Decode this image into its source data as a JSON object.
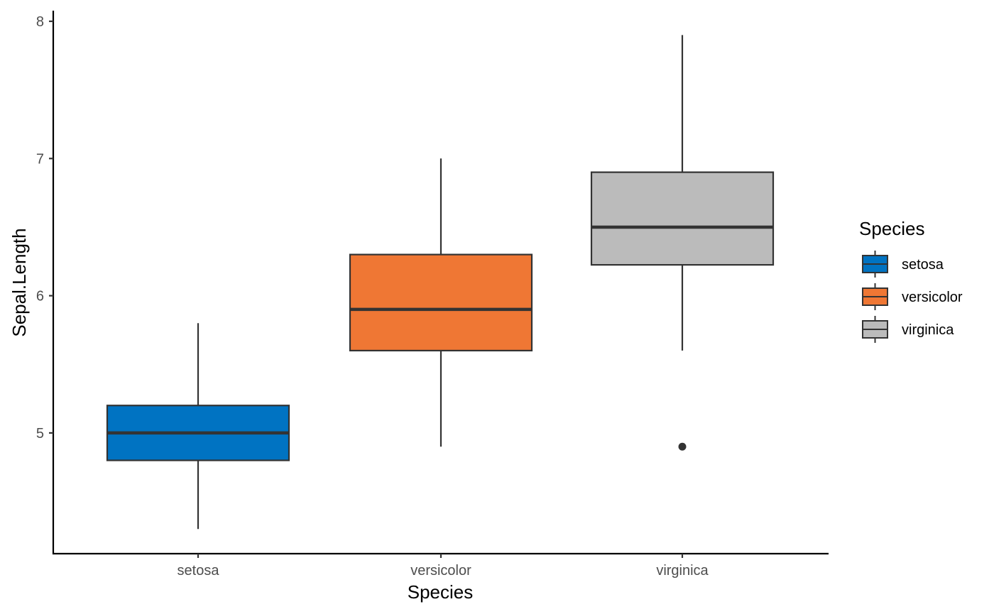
{
  "chart_data": {
    "type": "boxplot",
    "title": "",
    "xlabel": "Species",
    "ylabel": "Sepal.Length",
    "ylim": [
      4.18,
      8.08
    ],
    "yticks": [
      "5",
      "6",
      "7",
      "8"
    ],
    "grid": false,
    "legend": {
      "title": "Species",
      "position": "right"
    },
    "categories": [
      "setosa",
      "versicolor",
      "virginica"
    ],
    "series": [
      {
        "name": "setosa",
        "color": "#0073c2",
        "min": 4.3,
        "q1": 4.8,
        "median": 5.0,
        "q3": 5.2,
        "max": 5.8,
        "outliers": []
      },
      {
        "name": "versicolor",
        "color": "#ef7734",
        "min": 4.9,
        "q1": 5.6,
        "median": 5.9,
        "q3": 6.3,
        "max": 7.0,
        "outliers": []
      },
      {
        "name": "virginica",
        "color": "#bbbbbb",
        "min": 5.6,
        "q1": 6.225,
        "median": 6.5,
        "q3": 6.9,
        "max": 7.9,
        "outliers": [
          4.9
        ]
      }
    ]
  }
}
